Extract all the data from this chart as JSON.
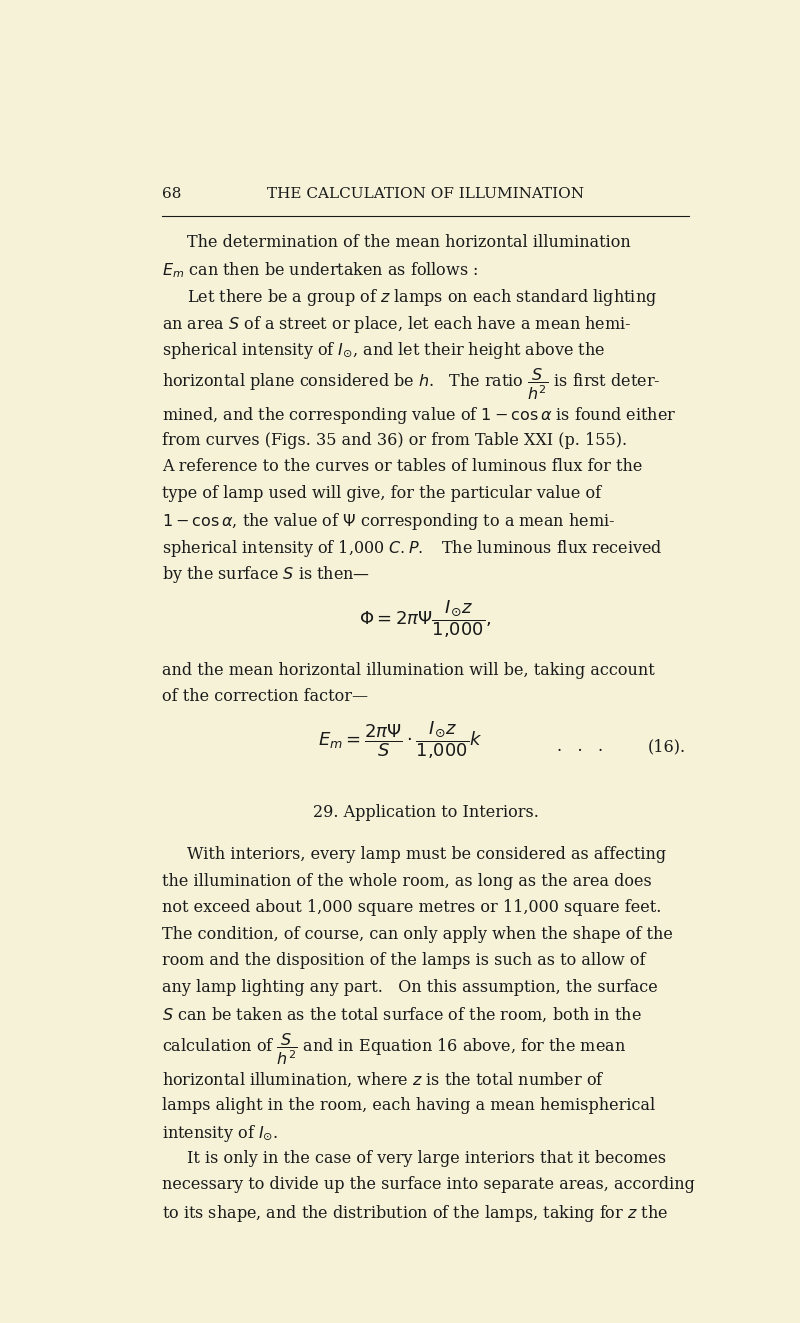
{
  "bg_color": "#f5f2d8",
  "text_color": "#1a1a1a",
  "page_num": "68",
  "header": "THE CALCULATION OF ILLUMINATION",
  "body_lines": [
    {
      "type": "paragraph_indent",
      "text": "The determination of the mean horizontal illumination"
    },
    {
      "type": "paragraph_cont",
      "text": "$E_m$ can then be undertaken as follows :"
    },
    {
      "type": "paragraph_indent",
      "text": "Let there be a group of $z$ lamps on each standard lighting"
    },
    {
      "type": "paragraph_cont",
      "text": "an area $S$ of a street or place, let each have a mean hemi-"
    },
    {
      "type": "paragraph_cont",
      "text": "spherical intensity of $I_{\\odot}$, and let their height above the"
    },
    {
      "type": "fraction_line",
      "text": "horizontal plane considered be $h$.   The ratio $\\dfrac{S}{h^2}$ is first deter-"
    },
    {
      "type": "paragraph_cont",
      "text": "mined, and the corresponding value of $1-\\cos\\alpha$ is found either"
    },
    {
      "type": "paragraph_cont",
      "text": "from curves (Figs. 35 and 36) or from Table XXI (p. 155)."
    },
    {
      "type": "paragraph_cont",
      "text": "A reference to the curves or tables of luminous flux for the"
    },
    {
      "type": "paragraph_cont",
      "text": "type of lamp used will give, for the particular value of"
    },
    {
      "type": "paragraph_cont",
      "text": "$1-\\cos\\alpha$, the value of $\\Psi$ corresponding to a mean hemi-"
    },
    {
      "type": "paragraph_cont",
      "text": "spherical intensity of 1,000 $C.P.$   The luminous flux received"
    },
    {
      "type": "paragraph_cont",
      "text": "by the surface $S$ is then—"
    },
    {
      "type": "equation",
      "text": "$\\Phi=2\\pi\\Psi\\dfrac{I_{\\odot}z}{1{,}000},$"
    },
    {
      "type": "paragraph_cont",
      "text": "and the mean horizontal illumination will be, taking account"
    },
    {
      "type": "paragraph_cont",
      "text": "of the correction factor—"
    },
    {
      "type": "equation_label",
      "text": "$E_m=\\dfrac{2\\pi\\Psi}{S}\\cdot\\dfrac{I_{\\odot}z}{1{,}000}k$",
      "label": "(16)."
    },
    {
      "type": "section_heading",
      "text": "29. Application to Interiors."
    },
    {
      "type": "paragraph_indent",
      "text": "With interiors, every lamp must be considered as affecting"
    },
    {
      "type": "paragraph_cont",
      "text": "the illumination of the whole room, as long as the area does"
    },
    {
      "type": "paragraph_cont",
      "text": "not exceed about 1,000 square metres or 11,000 square feet."
    },
    {
      "type": "paragraph_cont",
      "text": "The condition, of course, can only apply when the shape of the"
    },
    {
      "type": "paragraph_cont",
      "text": "room and the disposition of the lamps is such as to allow of"
    },
    {
      "type": "paragraph_cont",
      "text": "any lamp lighting any part.   On this assumption, the surface"
    },
    {
      "type": "paragraph_cont",
      "text": "$S$ can be taken as the total surface of the room, both in the"
    },
    {
      "type": "fraction_line2",
      "text": "calculation of $\\dfrac{S}{h^2}$ and in Equation 16 above, for the mean"
    },
    {
      "type": "paragraph_cont",
      "text": "horizontal illumination, where $z$ is the total number of"
    },
    {
      "type": "paragraph_cont",
      "text": "lamps alight in the room, each having a mean hemispherical"
    },
    {
      "type": "paragraph_cont",
      "text": "intensity of $I_{\\odot}$."
    },
    {
      "type": "paragraph_indent",
      "text": "It is only in the case of very large interiors that it becomes"
    },
    {
      "type": "paragraph_cont",
      "text": "necessary to divide up the surface into separate areas, according"
    },
    {
      "type": "paragraph_cont",
      "text": "to its shape, and the distribution of the lamps, taking for $z$ the"
    }
  ]
}
